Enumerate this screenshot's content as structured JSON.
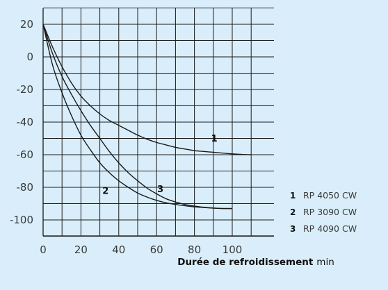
{
  "chart_data": {
    "type": "line",
    "title": "",
    "xlabel": "Durée de refroidissement",
    "xlabel_unit": "min",
    "ylabel": "",
    "xlim": [
      0,
      110
    ],
    "ylim": [
      -110,
      30
    ],
    "x_ticks": [
      0,
      20,
      40,
      60,
      80,
      100
    ],
    "y_ticks": [
      20,
      0,
      -20,
      -40,
      -60,
      -80,
      -100
    ],
    "grid": true,
    "legend_position": "bottom-right",
    "series": [
      {
        "name": "RP 4050 CW",
        "label": "1",
        "x": [
          0,
          5,
          10,
          15,
          20,
          25,
          30,
          35,
          40,
          45,
          50,
          55,
          60,
          65,
          70,
          75,
          80,
          85,
          90,
          95,
          100,
          105,
          110
        ],
        "y": [
          20,
          6,
          -6,
          -16,
          -24,
          -30,
          -35,
          -39,
          -42,
          -45,
          -48,
          -50.5,
          -52.5,
          -54,
          -55.5,
          -56.5,
          -57.5,
          -58,
          -58.5,
          -59,
          -59.5,
          -59.8,
          -60
        ]
      },
      {
        "name": "RP 3090 CW",
        "label": "2",
        "x": [
          0,
          5,
          10,
          15,
          20,
          25,
          30,
          35,
          40,
          45,
          50,
          55,
          60,
          65,
          70,
          75,
          80,
          85,
          90,
          95,
          100
        ],
        "y": [
          20,
          -5,
          -22,
          -36,
          -48,
          -57,
          -65,
          -71,
          -76,
          -80,
          -83.5,
          -86,
          -88,
          -89.5,
          -90.5,
          -91.3,
          -92,
          -92.4,
          -92.8,
          -93,
          -93
        ]
      },
      {
        "name": "RP 4090 CW",
        "label": "3",
        "x": [
          0,
          5,
          10,
          15,
          20,
          25,
          30,
          35,
          40,
          45,
          50,
          55,
          60,
          65,
          70,
          75,
          80,
          85,
          90,
          95,
          100
        ],
        "y": [
          20,
          2,
          -12,
          -23,
          -33,
          -42,
          -50,
          -58,
          -65,
          -71,
          -76,
          -80.5,
          -84,
          -87,
          -89,
          -90.5,
          -91.5,
          -92.2,
          -92.7,
          -93,
          -93
        ]
      }
    ]
  },
  "colors": {
    "background": "#d9eefa",
    "line": "#1a1a1a",
    "grid": "#1a1a1a"
  }
}
